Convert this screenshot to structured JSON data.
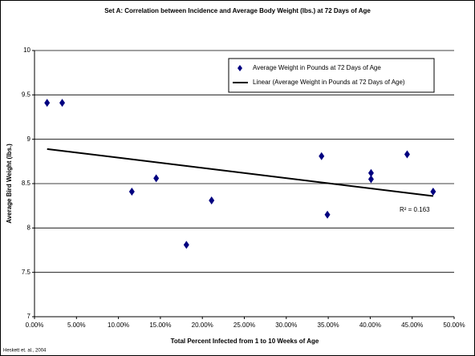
{
  "chart_data": {
    "type": "scatter",
    "title": "Set A:  Correlation between Incidence and Average Body Weight (lbs.) at 72 Days of Age",
    "xlabel": "Total Percent Infected from 1 to 10 Weeks of Age",
    "ylabel": "Average Bird Weight (lbs.)",
    "series": [
      {
        "name": "Average Weight in Pounds at 72 Days of Age",
        "color": "#000080",
        "x": [
          1.5,
          3.3,
          11.6,
          14.5,
          18.1,
          21.1,
          34.2,
          34.9,
          40.1,
          40.1,
          44.4,
          47.5
        ],
        "values": [
          9.41,
          9.41,
          8.41,
          8.56,
          7.81,
          8.31,
          8.81,
          8.15,
          8.62,
          8.55,
          8.83,
          8.41
        ]
      },
      {
        "name": "Linear (Average Weight in Pounds at 72 Days of Age)",
        "color": "#000000",
        "x": [
          1.5,
          47.5
        ],
        "values": [
          8.89,
          8.36
        ]
      }
    ],
    "annotation": "R² = 0.163",
    "source": "Heskett et. al., 2004",
    "xlim": [
      0,
      50
    ],
    "xticks": [
      {
        "value": 0,
        "label": "0.00%"
      },
      {
        "value": 5,
        "label": "5.00%"
      },
      {
        "value": 10,
        "label": "10.00%"
      },
      {
        "value": 15,
        "label": "15.00%"
      },
      {
        "value": 20,
        "label": "20.00%"
      },
      {
        "value": 25,
        "label": "25.00%"
      },
      {
        "value": 30,
        "label": "30.00%"
      },
      {
        "value": 35,
        "label": "35.00%"
      },
      {
        "value": 40,
        "label": "40.00%"
      },
      {
        "value": 45,
        "label": "45.00%"
      },
      {
        "value": 50,
        "label": "50.00%"
      }
    ],
    "ylim": [
      7,
      10
    ],
    "yticks": [
      7,
      7.5,
      8,
      8.5,
      9,
      9.5,
      10
    ],
    "grid": true,
    "legend": "top-right"
  }
}
